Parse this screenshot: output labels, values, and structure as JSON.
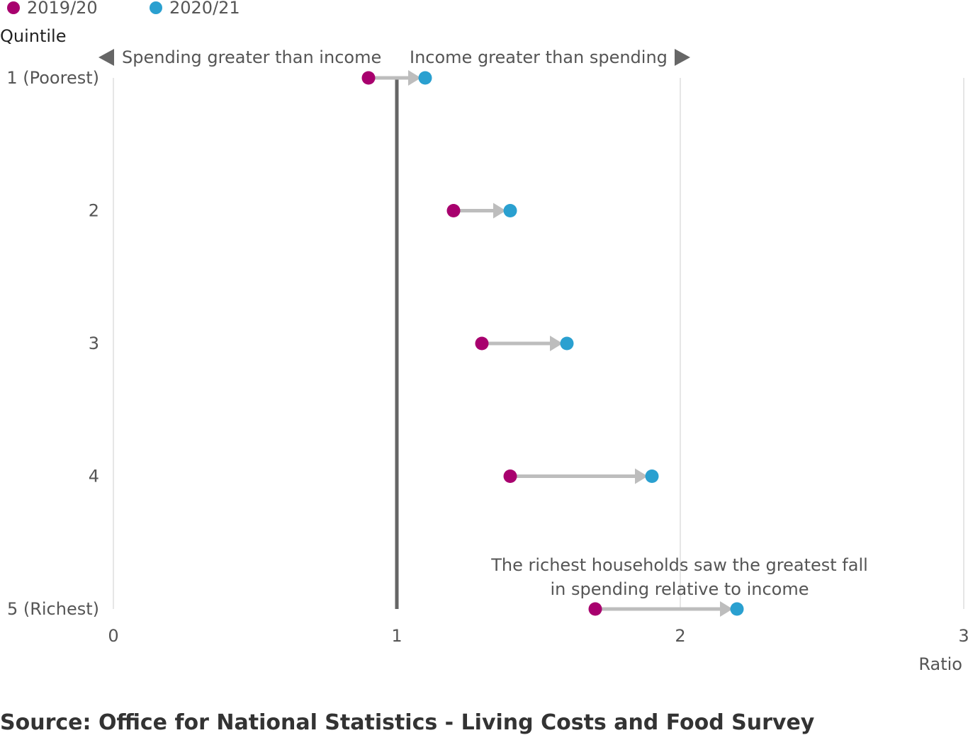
{
  "chart_data": {
    "type": "dumbbell",
    "y_title": "Quintile",
    "x_title": "Ratio",
    "xlim": [
      0,
      3
    ],
    "x_ticks": [
      "0",
      "1",
      "2",
      "3"
    ],
    "x_tick_values": [
      0,
      1,
      2,
      3
    ],
    "reference_line_x": 1,
    "categories": [
      "1 (Poorest)",
      "2",
      "3",
      "4",
      "5 (Richest)"
    ],
    "series": [
      {
        "name": "2019/20",
        "color": "#a8006e",
        "values": [
          0.9,
          1.2,
          1.3,
          1.4,
          1.7
        ]
      },
      {
        "name": "2020/21",
        "color": "#2aa0d0",
        "values": [
          1.1,
          1.4,
          1.6,
          1.9,
          2.2
        ]
      }
    ],
    "region_labels": {
      "left": "Spending greater than income",
      "right": "Income greater than spending"
    },
    "annotation": {
      "line1": "The richest households saw the greatest fall",
      "line2": "in spending relative to income"
    },
    "grid": true,
    "legend_position": "top-left"
  },
  "colors": {
    "connector": "#bdbdbd",
    "reference_line": "#666666",
    "grid": "#dddddd",
    "text": "#555555"
  },
  "source": "Source: Office for National Statistics - Living Costs and Food Survey"
}
